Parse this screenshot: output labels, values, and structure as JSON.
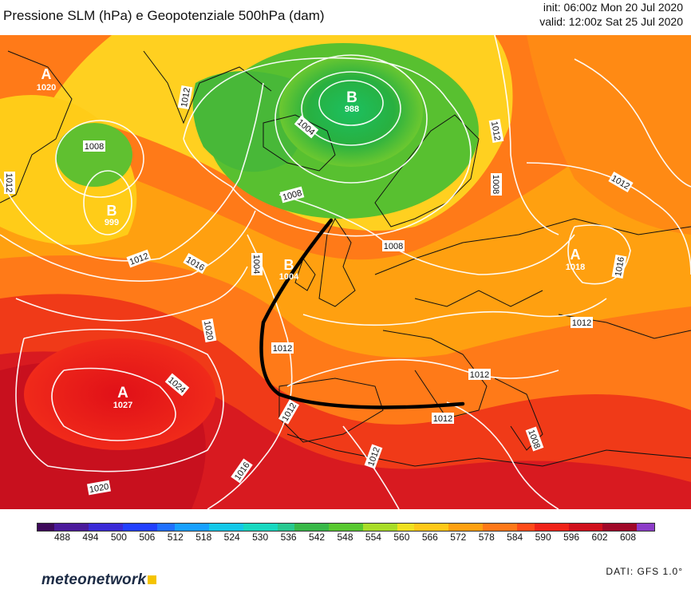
{
  "header": {
    "title": "Pressione SLM (hPa) e Geopotenziale 500hPa (dam)",
    "init": "init: 06:00z Mon 20 Jul 2020",
    "valid": "valid: 12:00z Sat 25 Jul 2020"
  },
  "map": {
    "centers": [
      {
        "type": "A",
        "value": "1020"
      },
      {
        "type": "B",
        "value": "988"
      },
      {
        "type": "B",
        "value": "999"
      },
      {
        "type": "B",
        "value": "1004"
      },
      {
        "type": "A",
        "value": "1018"
      },
      {
        "type": "A",
        "value": "1027"
      }
    ],
    "isobar_labels": [
      "1012",
      "1008",
      "1004",
      "1008",
      "1012",
      "1012",
      "1016",
      "1004",
      "1008",
      "1012",
      "1012",
      "1012",
      "1020",
      "1024",
      "1016",
      "1020",
      "1012",
      "1012",
      "1012",
      "1016",
      "1008",
      "1012",
      "1008",
      "1012"
    ],
    "front_color": "#000000"
  },
  "legend": {
    "ticks": [
      "488",
      "494",
      "500",
      "506",
      "512",
      "518",
      "524",
      "530",
      "536",
      "542",
      "548",
      "554",
      "560",
      "566",
      "572",
      "578",
      "584",
      "590",
      "596",
      "602",
      "608"
    ],
    "colors": [
      "#3d0a5a",
      "#4a1a9a",
      "#3a2ad6",
      "#2240ff",
      "#2070ff",
      "#18a0ff",
      "#14c8e8",
      "#18d8c0",
      "#28c890",
      "#38b848",
      "#58c830",
      "#a8dc28",
      "#f0e020",
      "#ffc818",
      "#ffa010",
      "#ff7818",
      "#ff4a18",
      "#f02218",
      "#d0101c",
      "#a00828",
      "#8c3cc8"
    ]
  },
  "footer": {
    "brand_part1": "meteo",
    "brand_part2": "network",
    "source": "DATI: GFS 1.0°"
  }
}
